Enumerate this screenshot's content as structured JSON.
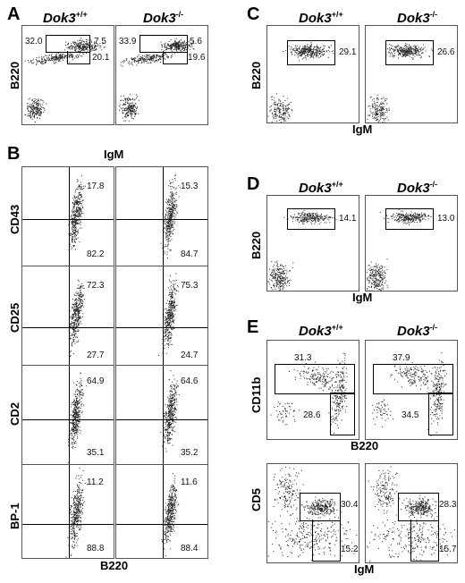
{
  "figure": {
    "genotypes": {
      "wt_base": "Dok3",
      "wt_sup": "+/+",
      "ko_base": "Dok3",
      "ko_sup": "-/-"
    }
  },
  "panels": {
    "A": {
      "letter": "A",
      "y_label": "B220",
      "plots": [
        {
          "values": [
            "32.0",
            "7.5",
            "20.1"
          ]
        },
        {
          "values": [
            "33.9",
            "5.6",
            "19.6"
          ]
        }
      ]
    },
    "B": {
      "letter": "B",
      "top_label": "IgM",
      "x_label": "B220",
      "rows": [
        {
          "marker": "CD43",
          "wt": [
            "17.8",
            "82.2"
          ],
          "ko": [
            "15.3",
            "84.7"
          ]
        },
        {
          "marker": "CD25",
          "wt": [
            "72.3",
            "27.7"
          ],
          "ko": [
            "75.3",
            "24.7"
          ]
        },
        {
          "marker": "CD2",
          "wt": [
            "64.9",
            "35.1"
          ],
          "ko": [
            "64.6",
            "35.2"
          ]
        },
        {
          "marker": "BP-1",
          "wt": [
            "11.2",
            "88.8"
          ],
          "ko": [
            "11.6",
            "88.4"
          ]
        }
      ]
    },
    "C": {
      "letter": "C",
      "y_label": "B220",
      "x_label": "IgM",
      "plots": [
        {
          "values": [
            "29.1"
          ]
        },
        {
          "values": [
            "26.6"
          ]
        }
      ]
    },
    "D": {
      "letter": "D",
      "y_label": "B220",
      "x_label": "IgM",
      "plots": [
        {
          "values": [
            "14.1"
          ]
        },
        {
          "values": [
            "13.0"
          ]
        }
      ]
    },
    "E": {
      "letter": "E",
      "top": {
        "y_label": "CD11b",
        "x_label": "B220",
        "plots": [
          {
            "values": [
              "31.3",
              "28.6"
            ]
          },
          {
            "values": [
              "37.9",
              "34.5"
            ]
          }
        ]
      },
      "bottom": {
        "y_label": "CD5",
        "x_label": "IgM",
        "plots": [
          {
            "values": [
              "30.4",
              "15.2"
            ]
          },
          {
            "values": [
              "28.3",
              "15.7"
            ]
          }
        ]
      }
    }
  }
}
